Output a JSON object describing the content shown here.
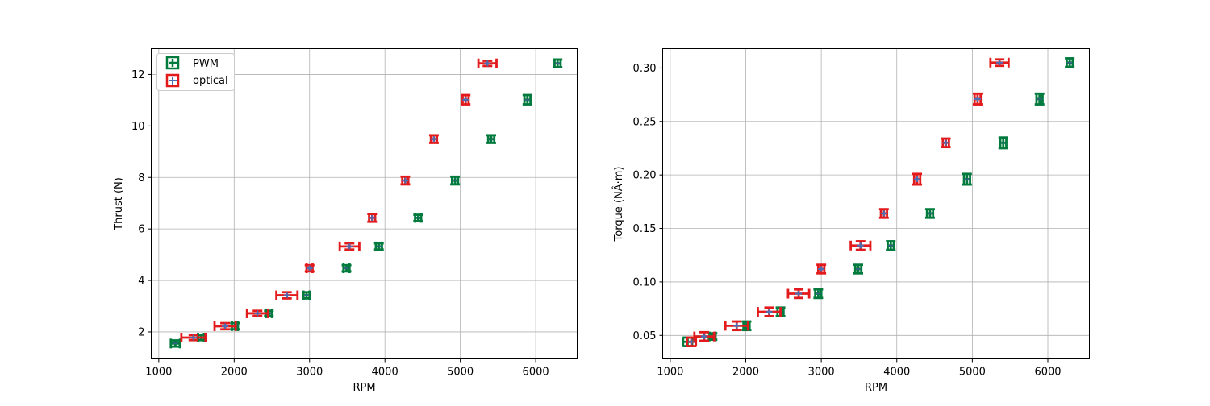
{
  "chart_data": [
    {
      "type": "scatter",
      "title": "",
      "xlabel": "RPM",
      "ylabel": "Thrust (N)",
      "xlim": [
        900,
        6550
      ],
      "ylim": [
        0.95,
        13.0
      ],
      "xticks": [
        1000,
        2000,
        3000,
        4000,
        5000,
        6000
      ],
      "yticks": [
        2,
        4,
        6,
        8,
        10,
        12
      ],
      "ytick_labels": [
        "2",
        "4",
        "6",
        "8",
        "10",
        "12"
      ],
      "grid": true,
      "legend": "top-left",
      "series": [
        {
          "name": "PWM",
          "color": "#007a3d",
          "points": [
            {
              "x": 1220,
              "y": 1.55,
              "xerr": 60,
              "yerr": 0.12
            },
            {
              "x": 1560,
              "y": 1.78,
              "xerr": 40,
              "yerr": 0.1
            },
            {
              "x": 2010,
              "y": 2.22,
              "xerr": 40,
              "yerr": 0.12
            },
            {
              "x": 2460,
              "y": 2.72,
              "xerr": 40,
              "yerr": 0.1
            },
            {
              "x": 2960,
              "y": 3.42,
              "xerr": 40,
              "yerr": 0.12
            },
            {
              "x": 3490,
              "y": 4.47,
              "xerr": 40,
              "yerr": 0.12
            },
            {
              "x": 3920,
              "y": 5.32,
              "xerr": 40,
              "yerr": 0.12
            },
            {
              "x": 4440,
              "y": 6.43,
              "xerr": 40,
              "yerr": 0.12
            },
            {
              "x": 4930,
              "y": 7.88,
              "xerr": 40,
              "yerr": 0.15
            },
            {
              "x": 5410,
              "y": 9.49,
              "xerr": 40,
              "yerr": 0.15
            },
            {
              "x": 5890,
              "y": 11.02,
              "xerr": 40,
              "yerr": 0.18
            },
            {
              "x": 6290,
              "y": 12.43,
              "xerr": 40,
              "yerr": 0.15
            }
          ]
        },
        {
          "name": "optical",
          "color": "#e31a1c",
          "points": [
            {
              "x": 1460,
              "y": 1.78,
              "xerr": 160,
              "yerr": 0.1
            },
            {
              "x": 1880,
              "y": 2.22,
              "xerr": 140,
              "yerr": 0.12
            },
            {
              "x": 2310,
              "y": 2.72,
              "xerr": 140,
              "yerr": 0.1
            },
            {
              "x": 2700,
              "y": 3.42,
              "xerr": 140,
              "yerr": 0.12
            },
            {
              "x": 3000,
              "y": 4.47,
              "xerr": 40,
              "yerr": 0.12
            },
            {
              "x": 3530,
              "y": 5.32,
              "xerr": 130,
              "yerr": 0.12
            },
            {
              "x": 3830,
              "y": 6.43,
              "xerr": 40,
              "yerr": 0.15
            },
            {
              "x": 4270,
              "y": 7.88,
              "xerr": 40,
              "yerr": 0.15
            },
            {
              "x": 4650,
              "y": 9.49,
              "xerr": 40,
              "yerr": 0.15
            },
            {
              "x": 5070,
              "y": 11.02,
              "xerr": 40,
              "yerr": 0.18
            },
            {
              "x": 5360,
              "y": 12.43,
              "xerr": 120,
              "yerr": 0.1
            }
          ]
        }
      ]
    },
    {
      "type": "scatter",
      "title": "",
      "xlabel": "RPM",
      "ylabel": "Torque (NÂ·m)",
      "xlim": [
        900,
        6550
      ],
      "ylim": [
        0.028,
        0.318
      ],
      "xticks": [
        1000,
        2000,
        3000,
        4000,
        5000,
        6000
      ],
      "yticks": [
        0.05,
        0.1,
        0.15,
        0.2,
        0.25,
        0.3
      ],
      "ytick_labels": [
        "0.05",
        "0.10",
        "0.15",
        "0.20",
        "0.25",
        "0.30"
      ],
      "grid": true,
      "series": [
        {
          "name": "PWM",
          "color": "#007a3d",
          "points": [
            {
              "x": 1230,
              "y": 0.044,
              "xerr": 60,
              "yerr": 0.004
            },
            {
              "x": 1560,
              "y": 0.049,
              "xerr": 40,
              "yerr": 0.003
            },
            {
              "x": 2010,
              "y": 0.059,
              "xerr": 40,
              "yerr": 0.004
            },
            {
              "x": 2460,
              "y": 0.072,
              "xerr": 40,
              "yerr": 0.004
            },
            {
              "x": 2960,
              "y": 0.089,
              "xerr": 40,
              "yerr": 0.004
            },
            {
              "x": 3490,
              "y": 0.112,
              "xerr": 40,
              "yerr": 0.004
            },
            {
              "x": 3920,
              "y": 0.134,
              "xerr": 40,
              "yerr": 0.004
            },
            {
              "x": 4440,
              "y": 0.164,
              "xerr": 40,
              "yerr": 0.004
            },
            {
              "x": 4930,
              "y": 0.196,
              "xerr": 40,
              "yerr": 0.005
            },
            {
              "x": 5410,
              "y": 0.23,
              "xerr": 40,
              "yerr": 0.005
            },
            {
              "x": 5890,
              "y": 0.271,
              "xerr": 40,
              "yerr": 0.005
            },
            {
              "x": 6290,
              "y": 0.305,
              "xerr": 40,
              "yerr": 0.004
            }
          ]
        },
        {
          "name": "optical",
          "color": "#e31a1c",
          "points": [
            {
              "x": 1280,
              "y": 0.044,
              "xerr": 60,
              "yerr": 0.004
            },
            {
              "x": 1450,
              "y": 0.049,
              "xerr": 130,
              "yerr": 0.004
            },
            {
              "x": 1880,
              "y": 0.059,
              "xerr": 150,
              "yerr": 0.004
            },
            {
              "x": 2310,
              "y": 0.072,
              "xerr": 150,
              "yerr": 0.004
            },
            {
              "x": 2700,
              "y": 0.089,
              "xerr": 140,
              "yerr": 0.004
            },
            {
              "x": 3000,
              "y": 0.112,
              "xerr": 40,
              "yerr": 0.004
            },
            {
              "x": 3520,
              "y": 0.134,
              "xerr": 130,
              "yerr": 0.004
            },
            {
              "x": 3830,
              "y": 0.164,
              "xerr": 40,
              "yerr": 0.004
            },
            {
              "x": 4270,
              "y": 0.196,
              "xerr": 40,
              "yerr": 0.005
            },
            {
              "x": 4650,
              "y": 0.23,
              "xerr": 40,
              "yerr": 0.004
            },
            {
              "x": 5070,
              "y": 0.271,
              "xerr": 40,
              "yerr": 0.005
            },
            {
              "x": 5360,
              "y": 0.305,
              "xerr": 120,
              "yerr": 0.003
            }
          ]
        }
      ]
    }
  ]
}
